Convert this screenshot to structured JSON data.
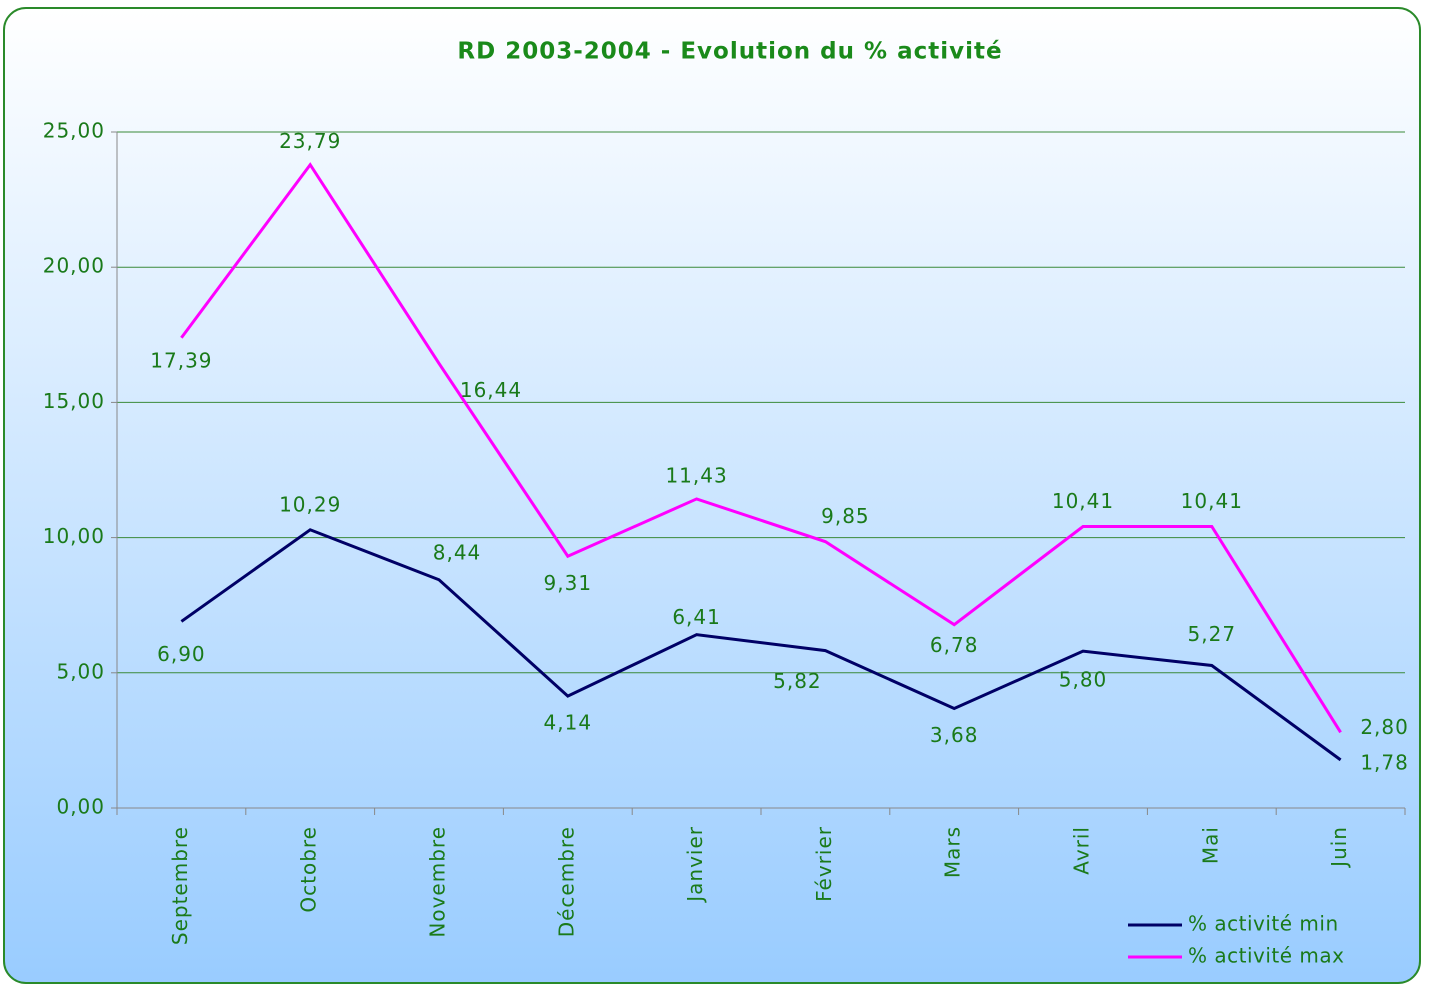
{
  "chart_data": {
    "type": "line",
    "title": "RD 2003-2004 - Evolution du % activité",
    "categories": [
      "Septembre",
      "Octobre",
      "Novembre",
      "Décembre",
      "Janvier",
      "Février",
      "Mars",
      "Avril",
      "Mai",
      "Juin"
    ],
    "series": [
      {
        "name": "% activité min",
        "color": "#000066",
        "values": [
          6.9,
          10.29,
          8.44,
          4.14,
          6.41,
          5.82,
          3.68,
          5.8,
          5.27,
          1.78
        ],
        "value_labels": [
          "6,90",
          "10,29",
          "8,44",
          "4,14",
          "6,41",
          "5,82",
          "3,68",
          "5,80",
          "5,27",
          "1,78"
        ]
      },
      {
        "name": "% activité max",
        "color": "#ff00ff",
        "values": [
          17.39,
          23.79,
          16.44,
          9.31,
          11.43,
          9.85,
          6.78,
          10.41,
          10.41,
          2.8
        ],
        "value_labels": [
          "17,39",
          "23,79",
          "16,44",
          "9,31",
          "11,43",
          "9,85",
          "6,78",
          "10,41",
          "10,41",
          "2,80"
        ]
      }
    ],
    "ylim": [
      0,
      25
    ],
    "yticks": [
      {
        "value": 0,
        "label": "0,00"
      },
      {
        "value": 5,
        "label": "5,00"
      },
      {
        "value": 10,
        "label": "10,00"
      },
      {
        "value": 15,
        "label": "15,00"
      },
      {
        "value": 20,
        "label": "20,00"
      },
      {
        "value": 25,
        "label": "25,00"
      }
    ],
    "grid": true,
    "legend": "lower right"
  }
}
